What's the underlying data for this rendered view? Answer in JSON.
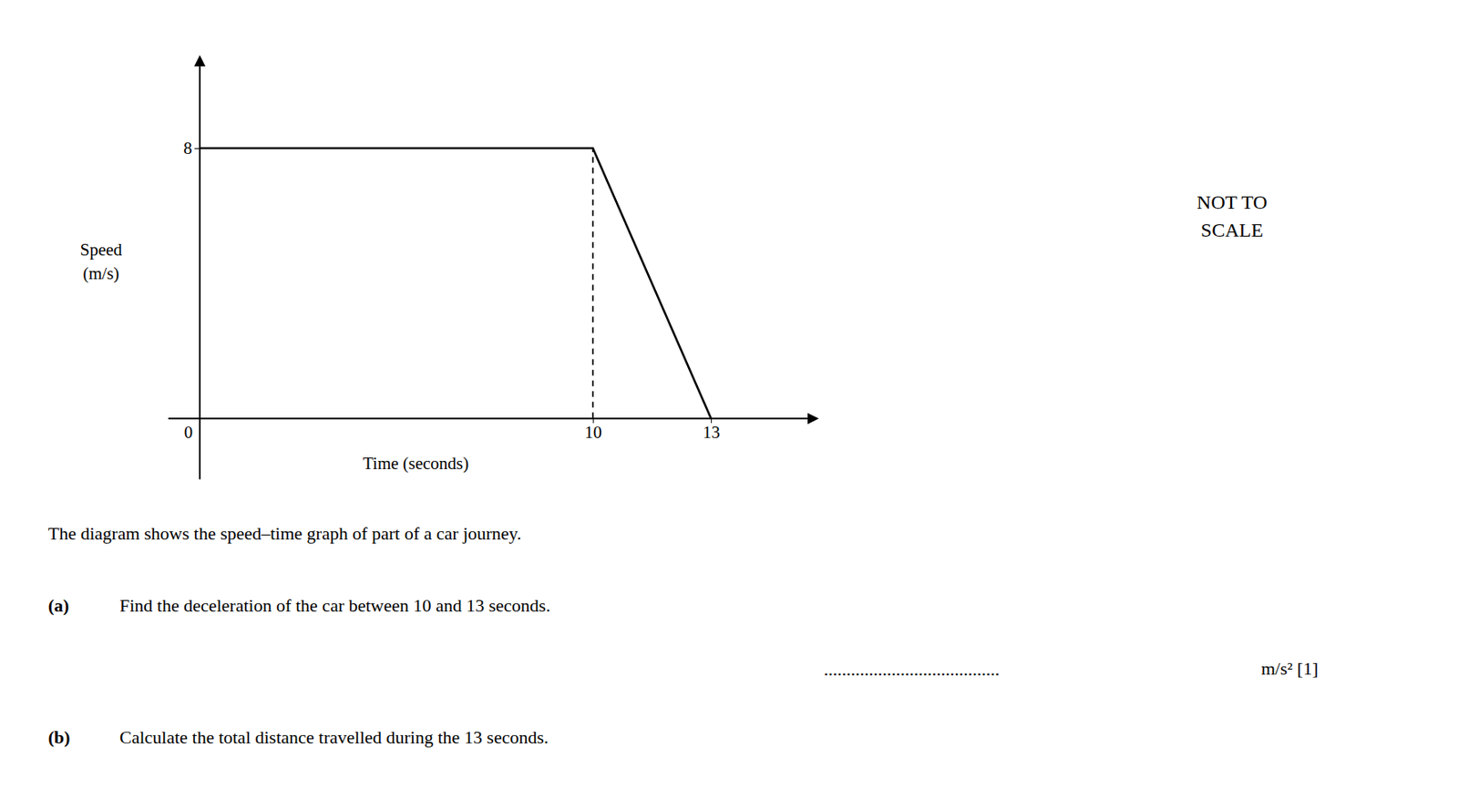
{
  "chart_data": {
    "type": "line",
    "x_label": "Time (seconds)",
    "y_label": "Speed\n(m/s)",
    "series": [
      {
        "x": [
          0,
          10,
          13
        ],
        "values": [
          8,
          8,
          0
        ],
        "color": "#000000",
        "line_style": "solid"
      },
      {
        "x": [
          10,
          10
        ],
        "values": [
          0,
          8
        ],
        "color": "#000000",
        "line_style": "dashed"
      }
    ],
    "xlim": [
      -0.8,
      15.5
    ],
    "ylim": [
      -1.8,
      10.5
    ],
    "xticks": [
      0,
      10,
      13
    ],
    "yticks": [
      8
    ],
    "grid": false,
    "annotations": [
      "NOT TO\nSCALE"
    ],
    "description": "The diagram shows the speed–time graph of part of a car journey.",
    "questions": [
      {
        "label": "(a)",
        "text": "Find the deceleration of the car between 10 and 13 seconds.",
        "answer": ".......................................",
        "answer_unit": "m/s² [1]"
      },
      {
        "label": "(b)",
        "text": "Calculate the total distance travelled during the 13 seconds."
      }
    ]
  }
}
